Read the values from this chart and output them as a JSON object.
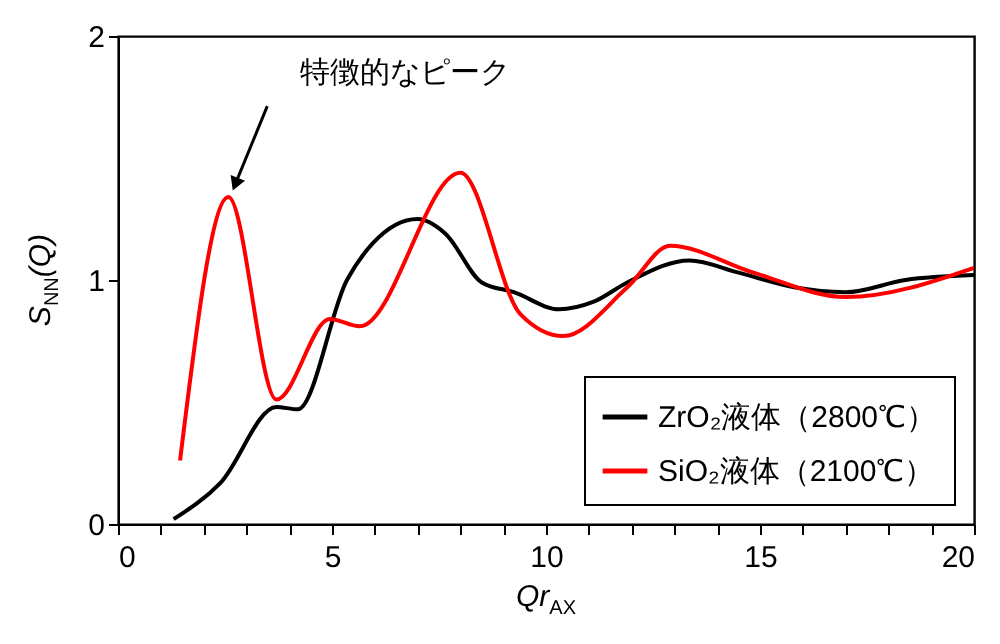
{
  "chart_data": {
    "type": "line",
    "xlabel": "Qr$_{AX}$",
    "ylabel": "S$_{NN}$(Q)",
    "xlim": [
      0,
      20
    ],
    "ylim": [
      0,
      2
    ],
    "xticks": [
      0,
      {
        "value": 1,
        "label": null
      },
      {
        "value": 2,
        "label": null
      },
      {
        "value": 3,
        "label": null
      },
      {
        "value": 4,
        "label": null
      },
      5,
      {
        "value": 6,
        "label": null
      },
      {
        "value": 7,
        "label": null
      },
      {
        "value": 8,
        "label": null
      },
      {
        "value": 9,
        "label": null
      },
      10,
      {
        "value": 11,
        "label": null
      },
      {
        "value": 12,
        "label": null
      },
      {
        "value": 13,
        "label": null
      },
      {
        "value": 14,
        "label": null
      },
      15,
      {
        "value": 16,
        "label": null
      },
      {
        "value": 17,
        "label": null
      },
      {
        "value": 18,
        "label": null
      },
      {
        "value": 19,
        "label": null
      },
      20
    ],
    "yticks": [
      0,
      1,
      2
    ],
    "legend": "bottom right",
    "line_style": "solid",
    "marker": "none",
    "annotations": [
      {
        "text": "特徴的なピーク",
        "x": 2.6,
        "y": 1.36
      }
    ],
    "series": [
      {
        "name": "ZrO₂液体（2800℃）",
        "color": "#000000",
        "x": [
          1.3,
          2.4,
          3.7,
          4.2,
          5.35,
          5.95,
          7.0,
          7.65,
          8.5,
          9.25,
          10.3,
          11.1,
          11.9,
          13.35,
          14.5,
          15.8,
          17.0,
          18.4,
          20
        ],
        "values": [
          0.02,
          0.17,
          0.48,
          0.47,
          1.0,
          1.15,
          1.25,
          1.19,
          0.99,
          0.95,
          0.88,
          0.91,
          0.99,
          1.08,
          1.03,
          0.97,
          0.95,
          1.0,
          1.02
        ]
      },
      {
        "name": "SiO₂液体（2100℃）",
        "color": "#ff0000",
        "x": [
          1.45,
          2.58,
          3.7,
          4.95,
          5.65,
          8.0,
          9.4,
          10.4,
          11.9,
          12.9,
          14.85,
          17.0,
          20
        ],
        "values": [
          0.26,
          1.34,
          0.51,
          0.84,
          0.81,
          1.44,
          0.86,
          0.77,
          0.97,
          1.14,
          1.03,
          0.93,
          1.05
        ]
      }
    ]
  }
}
